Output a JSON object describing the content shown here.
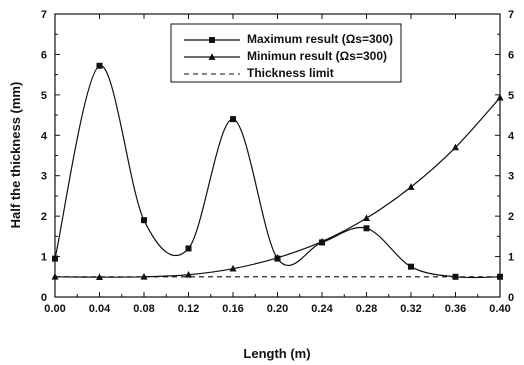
{
  "chart_data": {
    "type": "line",
    "xlabel": "Length (m)",
    "ylabel": "Half the thickness (mm)",
    "xlim": [
      0.0,
      0.4
    ],
    "ylim": [
      0,
      7
    ],
    "x_ticks": [
      "0.00",
      "0.04",
      "0.08",
      "0.12",
      "0.16",
      "0.20",
      "0.24",
      "0.28",
      "0.32",
      "0.36",
      "0.40"
    ],
    "y_ticks": [
      "0",
      "1",
      "2",
      "3",
      "4",
      "5",
      "6",
      "7"
    ],
    "y_ticks_right": [
      "0",
      "1",
      "2",
      "3",
      "4",
      "5",
      "6",
      "7"
    ],
    "grid": false,
    "legend_position": "top-center",
    "series": [
      {
        "name": "Maximum result (Ωs=300)",
        "marker": "square",
        "line": "solid",
        "x": [
          0.0,
          0.04,
          0.08,
          0.12,
          0.16,
          0.2,
          0.24,
          0.28,
          0.32,
          0.36,
          0.4
        ],
        "y": [
          0.95,
          5.72,
          1.9,
          1.2,
          4.4,
          0.95,
          1.35,
          1.7,
          0.75,
          0.5,
          0.5
        ]
      },
      {
        "name": "Minimun result (Ωs=300)",
        "marker": "triangle",
        "line": "solid",
        "x": [
          0.0,
          0.04,
          0.08,
          0.12,
          0.16,
          0.2,
          0.24,
          0.28,
          0.32,
          0.36,
          0.4
        ],
        "y": [
          0.5,
          0.49,
          0.5,
          0.55,
          0.7,
          0.97,
          1.37,
          1.95,
          2.72,
          3.7,
          4.93
        ]
      },
      {
        "name": "Thickness limit",
        "marker": "none",
        "line": "dashed",
        "x": [
          0.0,
          0.4
        ],
        "y": [
          0.5,
          0.5
        ]
      }
    ]
  }
}
